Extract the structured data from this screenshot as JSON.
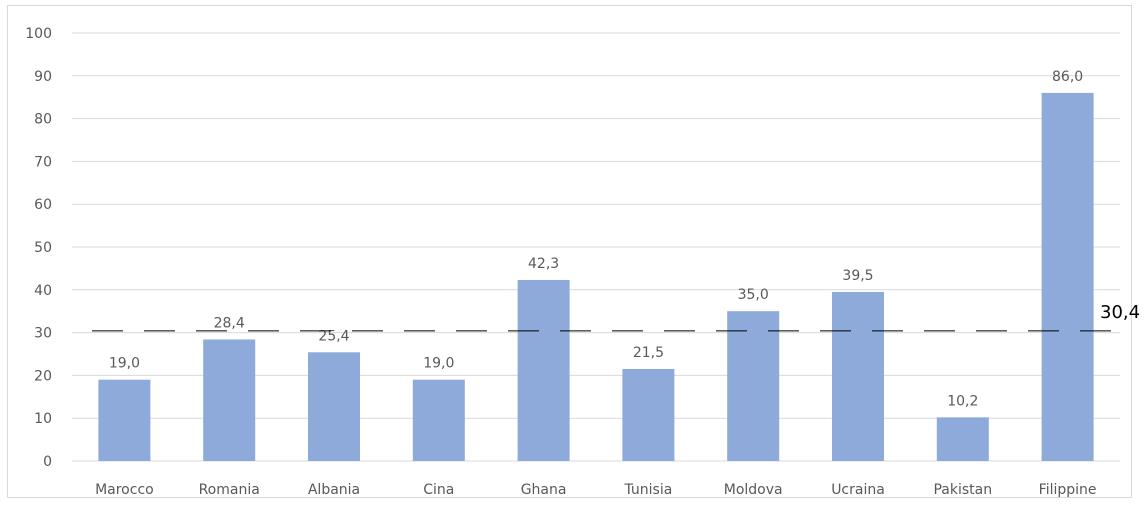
{
  "chart_data": {
    "type": "bar",
    "categories": [
      "Marocco",
      "Romania",
      "Albania",
      "Cina",
      "Ghana",
      "Tunisia",
      "Moldova",
      "Ucraina",
      "Pakistan",
      "Filippine"
    ],
    "values": [
      19.0,
      28.4,
      25.4,
      19.0,
      42.3,
      21.5,
      35.0,
      39.5,
      10.2,
      86.0
    ],
    "data_labels": [
      "19,0",
      "28,4",
      "25,4",
      "19,0",
      "42,3",
      "21,5",
      "35,0",
      "39,5",
      "10,2",
      "86,0"
    ],
    "y_ticks": [
      "0",
      "10",
      "20",
      "30",
      "40",
      "50",
      "60",
      "70",
      "80",
      "90",
      "100"
    ],
    "ylim": [
      0,
      100
    ],
    "grid": true,
    "legend": "none",
    "reference_line": {
      "value": 30.4,
      "label": "30,4",
      "style": "dashed"
    },
    "title": "",
    "xlabel": "",
    "ylabel": "",
    "colors": {
      "bar": "#8eaadb",
      "grid": "#d9d9d9",
      "reference": "#000000"
    }
  }
}
